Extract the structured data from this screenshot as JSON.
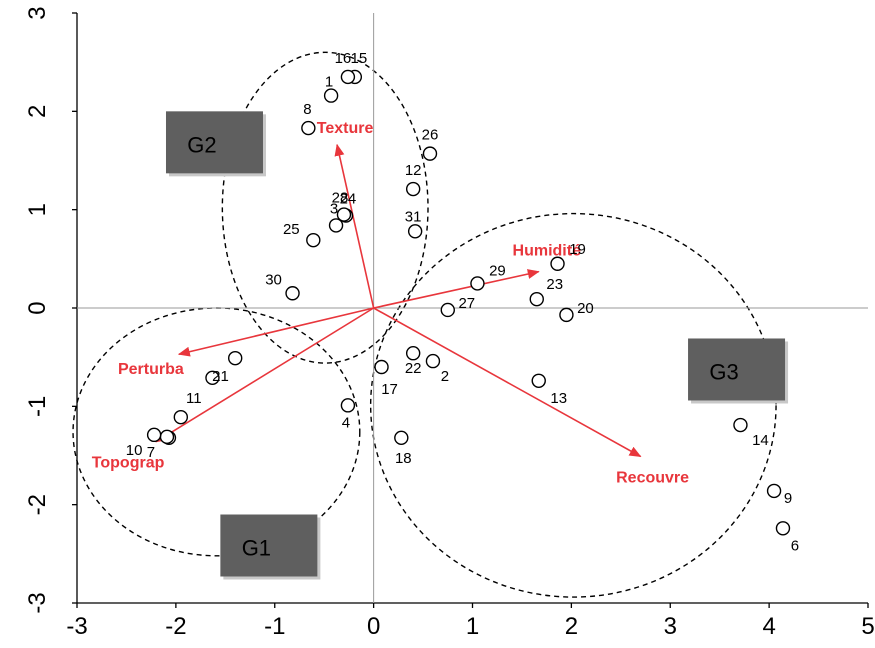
{
  "chart_data": {
    "type": "scatter",
    "title": "",
    "xlabel": "",
    "ylabel": "",
    "xlim": [
      -3,
      5
    ],
    "ylim": [
      -3,
      3
    ],
    "xticks": [
      "-3",
      "-2",
      "-1",
      "0",
      "1",
      "2",
      "3",
      "4",
      "5"
    ],
    "yticks": [
      "-3",
      "-2",
      "-1",
      "0",
      "1",
      "2",
      "3"
    ],
    "grid": false,
    "colors": {
      "vector": "#e8363c",
      "group_box": "#5f5f5f",
      "group_shadow": "#c8c8c8",
      "points": "#000000"
    },
    "points": [
      {
        "label": "1",
        "x": -0.43,
        "y": 2.16
      },
      {
        "label": "2",
        "x": 0.6,
        "y": -0.54
      },
      {
        "label": "3",
        "x": -0.38,
        "y": 0.84
      },
      {
        "label": "4",
        "x": -0.26,
        "y": -0.99
      },
      {
        "label": "5",
        "x": -2.07,
        "y": -1.32
      },
      {
        "label": "6",
        "x": 4.14,
        "y": -2.24
      },
      {
        "label": "7",
        "x": -2.09,
        "y": -1.31
      },
      {
        "label": "8",
        "x": -0.66,
        "y": 1.83
      },
      {
        "label": "9",
        "x": 4.05,
        "y": -1.86
      },
      {
        "label": "10",
        "x": -2.22,
        "y": -1.29
      },
      {
        "label": "11",
        "x": -1.95,
        "y": -1.11
      },
      {
        "label": "12",
        "x": 0.4,
        "y": 1.21
      },
      {
        "label": "13",
        "x": 1.67,
        "y": -0.74
      },
      {
        "label": "14",
        "x": 3.71,
        "y": -1.19
      },
      {
        "label": "15",
        "x": -0.19,
        "y": 2.35
      },
      {
        "label": "16",
        "x": -0.26,
        "y": 2.35
      },
      {
        "label": "17",
        "x": 0.08,
        "y": -0.6
      },
      {
        "label": "18",
        "x": 0.28,
        "y": -1.32
      },
      {
        "label": "19",
        "x": 1.86,
        "y": 0.45
      },
      {
        "label": "20",
        "x": 1.95,
        "y": -0.07
      },
      {
        "label": "21",
        "x": -1.63,
        "y": -0.71
      },
      {
        "label": "22",
        "x": 0.4,
        "y": -0.46
      },
      {
        "label": "23",
        "x": 1.65,
        "y": 0.09
      },
      {
        "label": "24",
        "x": -0.28,
        "y": 0.94
      },
      {
        "label": "25",
        "x": -0.61,
        "y": 0.69
      },
      {
        "label": "26",
        "x": 0.57,
        "y": 1.57
      },
      {
        "label": "27",
        "x": 0.75,
        "y": -0.02
      },
      {
        "label": "28",
        "x": -0.3,
        "y": 0.95
      },
      {
        "label": "29",
        "x": 1.05,
        "y": 0.25
      },
      {
        "label": "30",
        "x": -0.82,
        "y": 0.15
      },
      {
        "label": "31",
        "x": 0.42,
        "y": 0.78
      },
      {
        "label": "",
        "x": -1.4,
        "y": -0.51
      }
    ],
    "vectors": [
      {
        "name": "Texture",
        "x": -0.37,
        "y": 1.66
      },
      {
        "name": "Humidité",
        "x": 1.67,
        "y": 0.37
      },
      {
        "name": "Perturba",
        "x": -1.97,
        "y": -0.47
      },
      {
        "name": "Topograp",
        "x": -2.2,
        "y": -1.36
      },
      {
        "name": "Recouvre",
        "x": 2.7,
        "y": -1.51
      }
    ],
    "ellipses": [
      {
        "group": "G2",
        "cx": -0.49,
        "cy": 1.02,
        "rx": 1.04,
        "ry": 1.58
      },
      {
        "group": "G1",
        "cx": -1.59,
        "cy": -1.26,
        "rx": 1.45,
        "ry": 1.26
      },
      {
        "group": "G3",
        "cx": 2.02,
        "cy": -0.99,
        "rx": 2.05,
        "ry": 1.95
      }
    ],
    "groups": [
      "G1",
      "G2",
      "G3"
    ]
  }
}
